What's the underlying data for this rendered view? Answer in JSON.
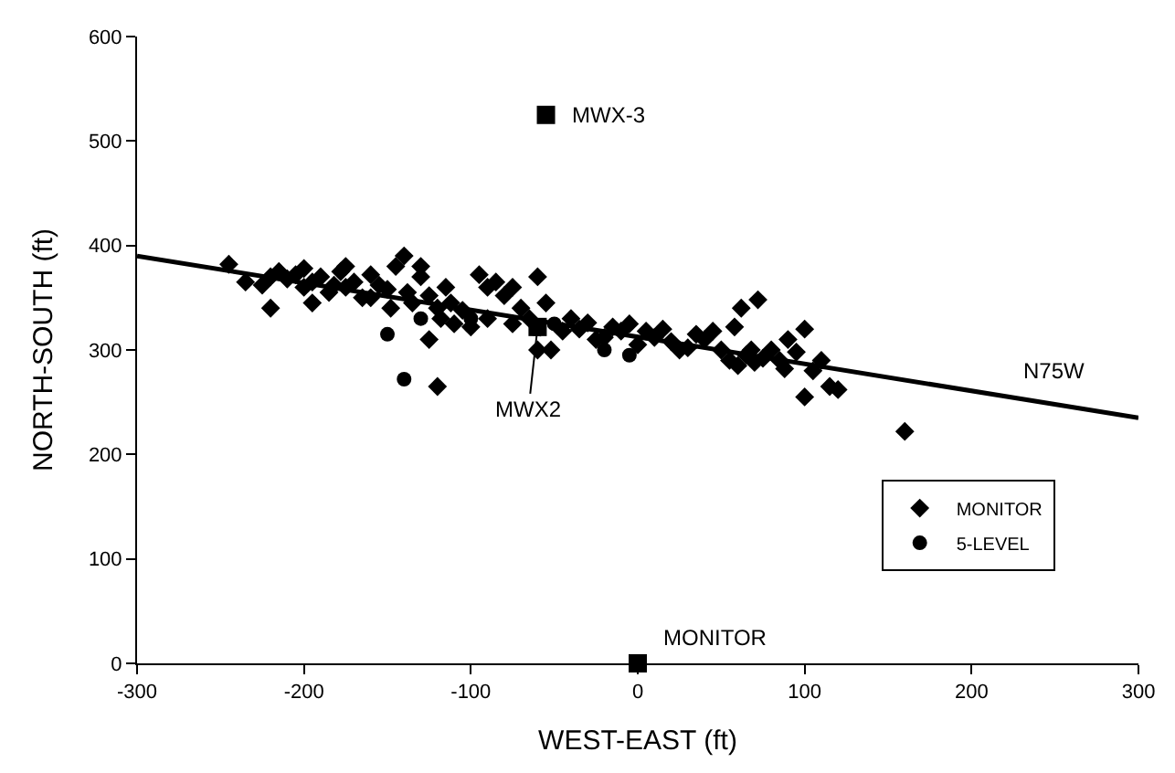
{
  "chart_data": {
    "type": "scatter",
    "xlabel": "WEST-EAST (ft)",
    "ylabel": "NORTH-SOUTH (ft)",
    "xlim": [
      -300,
      300
    ],
    "ylim": [
      0,
      600
    ],
    "xticks": [
      -300,
      -200,
      -100,
      0,
      100,
      200,
      300
    ],
    "yticks": [
      0,
      100,
      200,
      300,
      400,
      500,
      600
    ],
    "legend": "bottom right",
    "series": [
      {
        "name": "MONITOR",
        "color": "#000000",
        "marker": "diamond",
        "x": [
          -245,
          -235,
          -225,
          -220,
          -215,
          -210,
          -205,
          -200,
          -200,
          -195,
          -190,
          -185,
          -182,
          -178,
          -175,
          -170,
          -165,
          -160,
          -155,
          -150,
          -148,
          -145,
          -140,
          -138,
          -135,
          -130,
          -125,
          -120,
          -118,
          -115,
          -112,
          -110,
          -105,
          -100,
          -95,
          -90,
          -85,
          -80,
          -75,
          -70,
          -65,
          -60,
          -55,
          -52,
          -45,
          -40,
          -35,
          -30,
          -25,
          -20,
          -15,
          -10,
          -5,
          0,
          5,
          10,
          15,
          20,
          25,
          30,
          35,
          40,
          45,
          50,
          55,
          58,
          60,
          62,
          65,
          68,
          70,
          72,
          75,
          80,
          85,
          88,
          90,
          95,
          100,
          100,
          105,
          110,
          115,
          120,
          160,
          -220,
          -195,
          -175,
          -160,
          -130,
          -125,
          -120,
          -90,
          -75,
          -60
        ],
        "values": [
          382,
          365,
          362,
          370,
          375,
          368,
          372,
          360,
          378,
          365,
          370,
          355,
          362,
          375,
          360,
          365,
          350,
          372,
          362,
          358,
          340,
          380,
          390,
          355,
          345,
          370,
          352,
          340,
          330,
          360,
          345,
          325,
          338,
          322,
          372,
          360,
          365,
          352,
          360,
          340,
          330,
          370,
          345,
          300,
          318,
          330,
          320,
          326,
          310,
          312,
          322,
          318,
          325,
          305,
          318,
          312,
          320,
          308,
          300,
          302,
          315,
          310,
          318,
          300,
          290,
          322,
          285,
          340,
          295,
          300,
          288,
          348,
          292,
          300,
          290,
          282,
          310,
          298,
          320,
          255,
          280,
          290,
          265,
          262,
          222,
          340,
          345,
          380,
          350,
          380,
          310,
          265,
          330,
          325,
          300
        ]
      },
      {
        "name": "5-LEVEL",
        "color": "#000000",
        "marker": "circle",
        "x": [
          -140,
          -150,
          -130,
          -100,
          -50,
          -20,
          -5
        ],
        "values": [
          272,
          315,
          330,
          330,
          325,
          300,
          295
        ]
      },
      {
        "color": "#000000",
        "marker": "square",
        "x": [
          -55,
          -60,
          0
        ],
        "values": [
          525,
          322,
          0
        ]
      },
      {
        "type": "line",
        "color": "#000000",
        "marker": "none",
        "x": [
          -300,
          300
        ],
        "values": [
          390,
          235
        ]
      }
    ],
    "annotations": [
      {
        "text": "MWX-3",
        "x": -55,
        "y": 525
      },
      {
        "text": "MWX2",
        "x": -60,
        "y": 322
      },
      {
        "text": "MONITOR",
        "x": 0,
        "y": 0
      },
      {
        "text": "N75W",
        "x": 250,
        "y": 248
      }
    ]
  }
}
